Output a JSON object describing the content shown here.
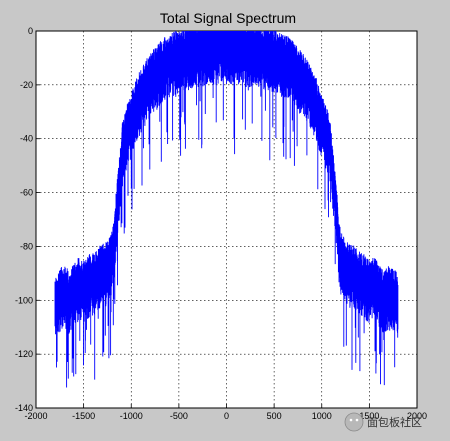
{
  "chart_data": {
    "type": "line",
    "title": "Total Signal Spectrum",
    "xlabel": "",
    "ylabel": "",
    "xlim": [
      -2000,
      2000
    ],
    "ylim": [
      -140,
      0
    ],
    "xticks": [
      -2000,
      -1500,
      -1000,
      -500,
      0,
      500,
      1000,
      1500,
      2000
    ],
    "yticks": [
      0,
      -20,
      -40,
      -60,
      -80,
      -100,
      -120,
      -140
    ],
    "x_tick_labels": [
      "-2000",
      "-1500",
      "-1000",
      "-500",
      "0",
      "500",
      "1000",
      "1500",
      "2000"
    ],
    "y_tick_labels": [
      "0",
      "-20",
      "-40",
      "-60",
      "-80",
      "-100",
      "-120",
      "-140"
    ],
    "grid": true,
    "grid_style": "dotted",
    "series": [
      {
        "color": "#0000ff",
        "x": [
          -1800,
          -1750,
          -1700,
          -1650,
          -1600,
          -1550,
          -1500,
          -1450,
          -1400,
          -1350,
          -1300,
          -1250,
          -1200,
          -1180,
          -1150,
          -1120,
          -1100,
          -1050,
          -1000,
          -950,
          -900,
          -850,
          -800,
          -750,
          -700,
          -650,
          -600,
          -550,
          -500,
          -450,
          -400,
          -350,
          -300,
          -250,
          -200,
          -150,
          -100,
          -50,
          0,
          50,
          100,
          150,
          200,
          250,
          300,
          350,
          400,
          450,
          500,
          550,
          600,
          650,
          700,
          750,
          800,
          850,
          900,
          950,
          1000,
          1050,
          1100,
          1120,
          1150,
          1180,
          1200,
          1250,
          1300,
          1350,
          1400,
          1450,
          1500,
          1550,
          1600,
          1650,
          1700,
          1750,
          1800
        ],
        "y": [
          -100,
          -98,
          -97,
          -99,
          -96,
          -94,
          -95,
          -93,
          -92,
          -90,
          -89,
          -88,
          -84,
          -80,
          -65,
          -55,
          -45,
          -38,
          -33,
          -28,
          -24,
          -21,
          -18,
          -16,
          -14,
          -12,
          -11,
          -10,
          -9,
          -8,
          -8,
          -7,
          -7,
          -7,
          -6,
          -6,
          -6,
          -6,
          -6,
          -6,
          -6,
          -6,
          -6,
          -7,
          -7,
          -7,
          -8,
          -8,
          -9,
          -10,
          -11,
          -12,
          -14,
          -16,
          -18,
          -21,
          -24,
          -28,
          -33,
          -38,
          -45,
          -55,
          -65,
          -80,
          -84,
          -88,
          -89,
          -90,
          -92,
          -93,
          -95,
          -94,
          -96,
          -99,
          -97,
          -98,
          -100
        ]
      }
    ]
  },
  "watermark": {
    "text": "面包板社区",
    "icon": "wechat-logo-icon"
  }
}
